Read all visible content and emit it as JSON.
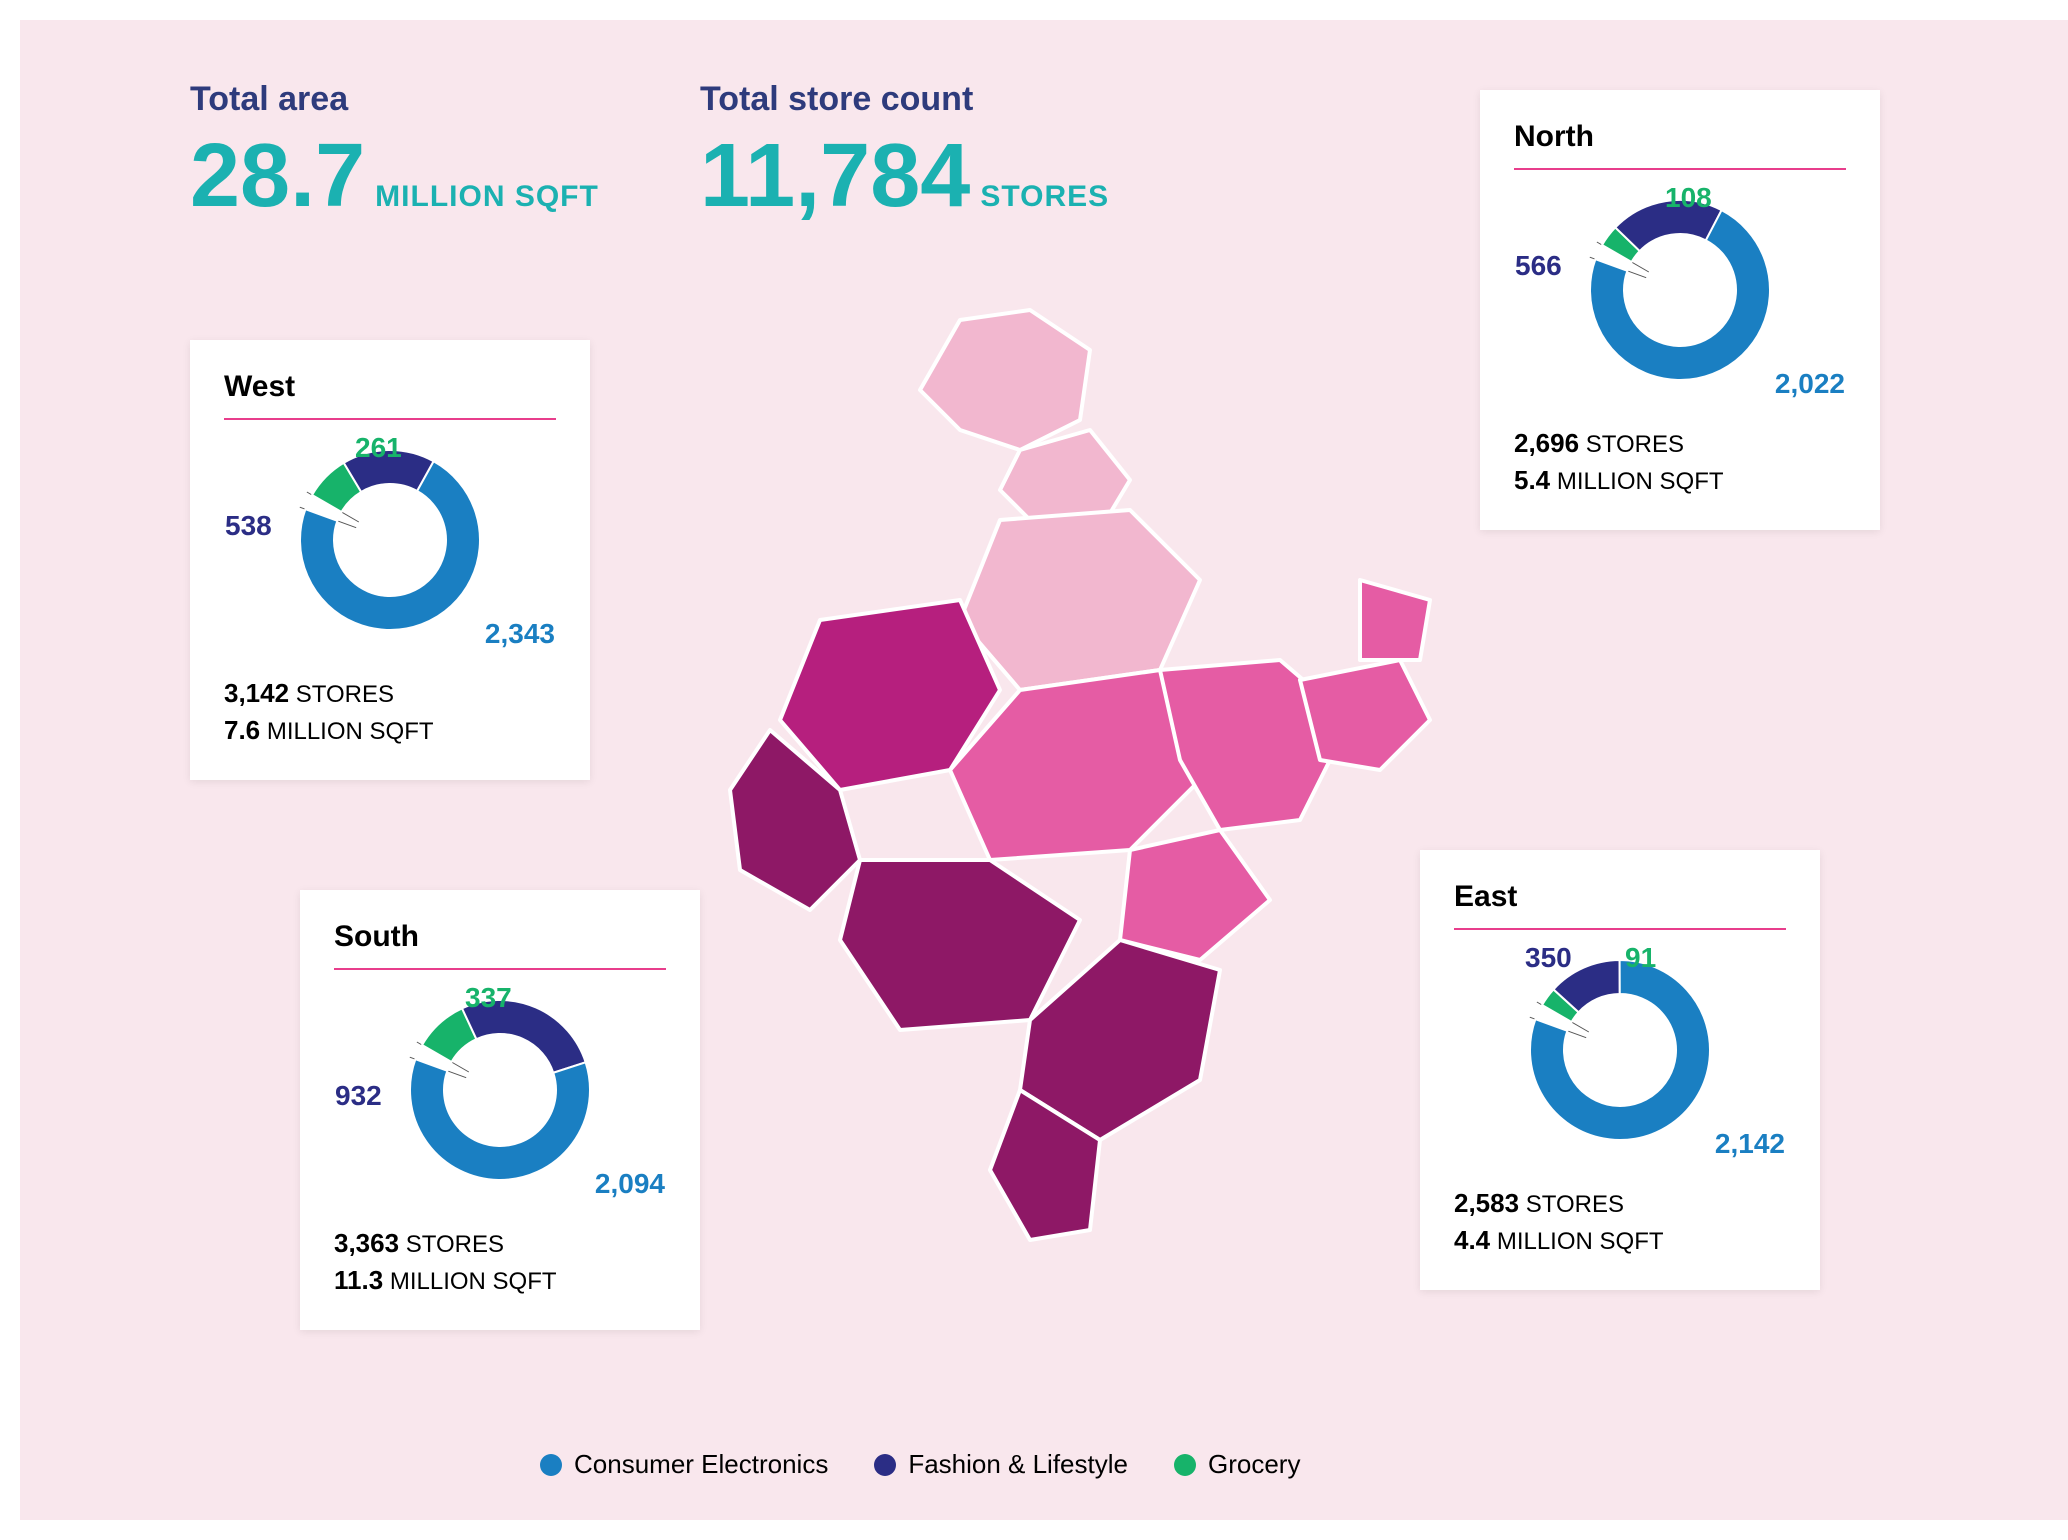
{
  "colors": {
    "canvas_bg": "#f9e7ed",
    "card_bg": "#ffffff",
    "teal": "#1bb1b1",
    "rule": "#e83e8c",
    "electronics": "#1a7fc2",
    "fashion": "#2b2d85",
    "grocery": "#17b36a",
    "map_light": "#f2b7cf",
    "map_mid": "#e55ca4",
    "map_dark": "#b61f7e",
    "map_darker": "#8e1866",
    "map_stroke": "#ffffff"
  },
  "header": {
    "area": {
      "label": "Total area",
      "value": "28.7",
      "unit": "MILLION SQFT"
    },
    "count": {
      "label": "Total store count",
      "value": "11,784",
      "unit": "STORES"
    }
  },
  "legend": {
    "electronics": "Consumer Electronics",
    "fashion": "Fashion & Lifestyle",
    "grocery": "Grocery"
  },
  "regions": {
    "north": {
      "title": "North",
      "donut": {
        "electronics": 2022,
        "fashion": 566,
        "grocery": 108
      },
      "label_electronics": "2,022",
      "label_fashion": "566",
      "label_grocery": "108",
      "stores_val": "2,696",
      "stores_unit": "STORES",
      "area_val": "5.4",
      "area_unit": "MILLION SQFT"
    },
    "west": {
      "title": "West",
      "donut": {
        "electronics": 2343,
        "fashion": 538,
        "grocery": 261
      },
      "label_electronics": "2,343",
      "label_fashion": "538",
      "label_grocery": "261",
      "stores_val": "3,142",
      "stores_unit": "STORES",
      "area_val": "7.6",
      "area_unit": "MILLION SQFT"
    },
    "south": {
      "title": "South",
      "donut": {
        "electronics": 2094,
        "fashion": 932,
        "grocery": 337
      },
      "label_electronics": "2,094",
      "label_fashion": "932",
      "label_grocery": "337",
      "stores_val": "3,363",
      "stores_unit": "STORES",
      "area_val": "11.3",
      "area_unit": "MILLION SQFT"
    },
    "east": {
      "title": "East",
      "donut": {
        "electronics": 2142,
        "fashion": 350,
        "grocery": 91
      },
      "label_electronics": "2,142",
      "label_fashion": "350",
      "label_grocery": "91",
      "stores_val": "2,583",
      "stores_unit": "STORES",
      "area_val": "4.4",
      "area_unit": "MILLION SQFT"
    }
  },
  "donut_style": {
    "outer_r": 90,
    "inner_r": 56,
    "stroke": "#ffffff",
    "stroke_width": 2,
    "start_angle_deg": -60,
    "gap_deg": 10
  }
}
